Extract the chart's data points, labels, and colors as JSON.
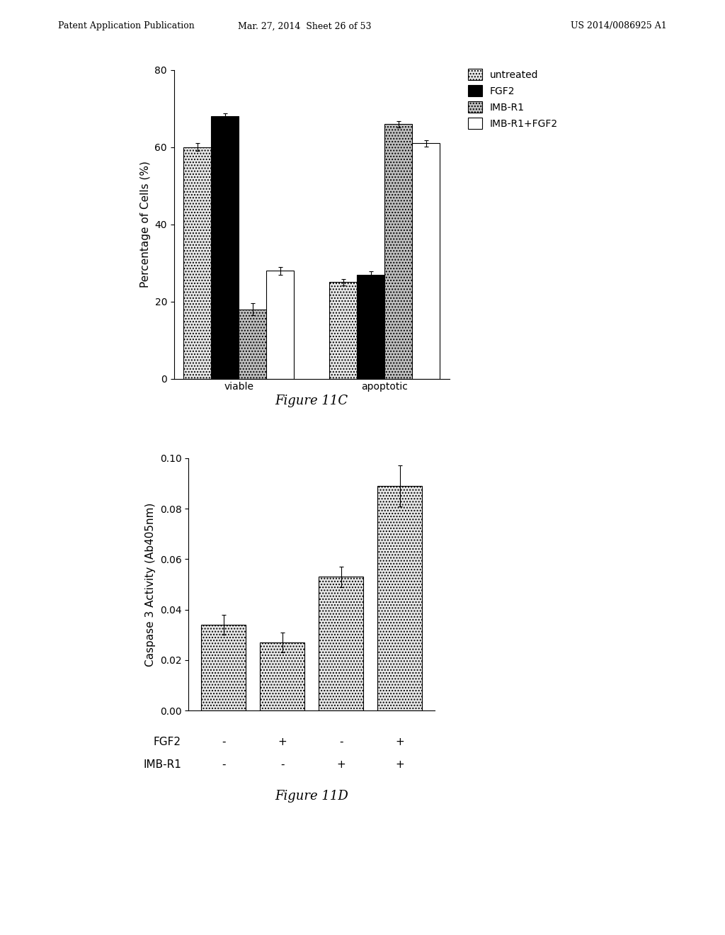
{
  "fig11c": {
    "ylabel": "Percentage of Cells (%)",
    "categories": [
      "viable",
      "apoptotic"
    ],
    "groups": [
      "untreated",
      "FGF2",
      "IMB-R1",
      "IMB-R1+FGF2"
    ],
    "values": {
      "viable": [
        60,
        68,
        18,
        28
      ],
      "apoptotic": [
        25,
        27,
        66,
        61
      ]
    },
    "errors": {
      "viable": [
        1.0,
        0.8,
        1.5,
        1.0
      ],
      "apoptotic": [
        0.8,
        0.8,
        0.8,
        0.8
      ]
    },
    "ylim": [
      0,
      80
    ],
    "yticks": [
      0,
      20,
      40,
      60,
      80
    ],
    "bar_colors": [
      "#e8e8e8",
      "#000000",
      "#c0c0c0",
      "#ffffff"
    ],
    "bar_hatches": [
      "....",
      "",
      "....",
      ""
    ]
  },
  "fig11d": {
    "ylabel": "Caspase 3 Activity (Ab405nm)",
    "xlabels_fgf2": [
      "-",
      "+",
      "-",
      "+"
    ],
    "xlabels_imbr1": [
      "-",
      "-",
      "+",
      "+"
    ],
    "values": [
      0.034,
      0.027,
      0.053,
      0.089
    ],
    "errors": [
      0.004,
      0.004,
      0.004,
      0.008
    ],
    "ylim": [
      0.0,
      0.1
    ],
    "yticks": [
      0.0,
      0.02,
      0.04,
      0.06,
      0.08,
      0.1
    ],
    "bar_color": "#e8e8e8",
    "bar_hatch": "...."
  },
  "header_left": "Patent Application Publication",
  "header_mid": "Mar. 27, 2014  Sheet 26 of 53",
  "header_right": "US 2014/0086925 A1",
  "fig11c_label": "Figure 11C",
  "fig11d_label": "Figure 11D",
  "background_color": "#ffffff"
}
